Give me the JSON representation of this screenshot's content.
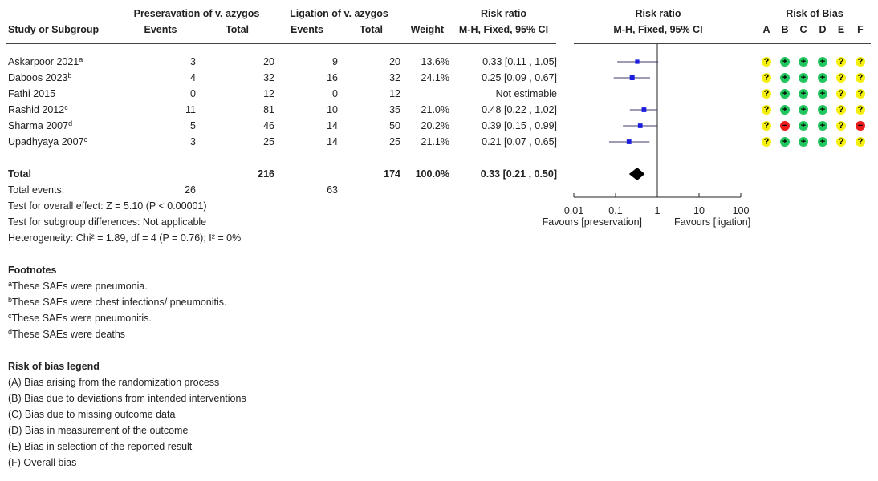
{
  "header": {
    "study_col": "Study or Subgroup",
    "group1_title": "Preseravation of v. azygos",
    "group2_title": "Ligation of v. azygos",
    "events": "Events",
    "total": "Total",
    "weight": "Weight",
    "rr_title": "Risk ratio",
    "rr_method": "M-H, Fixed, 95% CI",
    "plot_title": "Risk ratio",
    "plot_method": "M-H, Fixed, 95% CI",
    "rob_title": "Risk of Bias",
    "rob_letters": [
      "A",
      "B",
      "C",
      "D",
      "E",
      "F"
    ]
  },
  "studies": [
    {
      "name": "Askarpoor 2021",
      "sup": "a",
      "e1": "3",
      "t1": "20",
      "e2": "9",
      "t2": "20",
      "weight": "13.6%",
      "ci_text": "0.33 [0.11 , 1.05]",
      "rob": [
        "unclear",
        "low",
        "low",
        "low",
        "unclear",
        "unclear"
      ]
    },
    {
      "name": "Daboos 2023",
      "sup": "b",
      "e1": "4",
      "t1": "32",
      "e2": "16",
      "t2": "32",
      "weight": "24.1%",
      "ci_text": "0.25 [0.09 , 0.67]",
      "rob": [
        "unclear",
        "low",
        "low",
        "low",
        "unclear",
        "unclear"
      ]
    },
    {
      "name": "Fathi 2015",
      "sup": "",
      "e1": "0",
      "t1": "12",
      "e2": "0",
      "t2": "12",
      "weight": "",
      "ci_text": "Not estimable",
      "rob": [
        "unclear",
        "low",
        "low",
        "low",
        "unclear",
        "unclear"
      ]
    },
    {
      "name": "Rashid 2012",
      "sup": "c",
      "e1": "11",
      "t1": "81",
      "e2": "10",
      "t2": "35",
      "weight": "21.0%",
      "ci_text": "0.48 [0.22 , 1.02]",
      "rob": [
        "unclear",
        "low",
        "low",
        "low",
        "unclear",
        "unclear"
      ]
    },
    {
      "name": "Sharma 2007",
      "sup": "d",
      "e1": "5",
      "t1": "46",
      "e2": "14",
      "t2": "50",
      "weight": "20.2%",
      "ci_text": "0.39 [0.15 , 0.99]",
      "rob": [
        "unclear",
        "high",
        "low",
        "low",
        "unclear",
        "high"
      ]
    },
    {
      "name": "Upadhyaya 2007",
      "sup": "c",
      "e1": "3",
      "t1": "25",
      "e2": "14",
      "t2": "25",
      "weight": "21.1%",
      "ci_text": "0.21 [0.07 , 0.65]",
      "rob": [
        "unclear",
        "low",
        "low",
        "low",
        "unclear",
        "unclear"
      ]
    }
  ],
  "rob_symbols": {
    "low": "+",
    "unclear": "?",
    "high": "−"
  },
  "rob_colors": {
    "low": "#22c55e",
    "unclear": "#f5ef10",
    "high": "#ef1c1c"
  },
  "total": {
    "label": "Total",
    "t1": "216",
    "t2": "174",
    "weight": "100.0%",
    "ci_text": "0.33 [0.21 , 0.50]"
  },
  "total_events": {
    "label": "Total events:",
    "e1": "26",
    "e2": "63"
  },
  "tests": [
    "Test for overall effect: Z = 5.10 (P < 0.00001)",
    "Test for subgroup differences: Not applicable",
    "Heterogeneity: Chi² = 1.89, df = 4 (P = 0.76); I² = 0%"
  ],
  "axis": {
    "ticks": [
      "0.01",
      "0.1",
      "1",
      "10",
      "100"
    ],
    "favours_left": "Favours [preservation]",
    "favours_right": "Favours [ligation]"
  },
  "footnotes": {
    "title": "Footnotes",
    "items": [
      {
        "sup": "a",
        "text": "These SAEs were pneumonia."
      },
      {
        "sup": "b",
        "text": "These SAEs were chest infections/ pneumonitis."
      },
      {
        "sup": "c",
        "text": "These SAEs were pneumonitis."
      },
      {
        "sup": "d",
        "text": "These SAEs were deaths"
      }
    ]
  },
  "rob_legend": {
    "title": "Risk of bias legend",
    "items": [
      "(A) Bias arising from the randomization process",
      "(B) Bias due to deviations from intended interventions",
      "(C) Bias due to missing outcome data",
      "(D) Bias in measurement of the outcome",
      "(E) Bias in selection of the reported result",
      "(F) Overall bias"
    ]
  },
  "chart_data": {
    "type": "forest",
    "scale": "log",
    "xlim": [
      0.01,
      100
    ],
    "x_ticks": [
      0.01,
      0.1,
      1,
      10,
      100
    ],
    "points": [
      {
        "study": "Askarpoor 2021",
        "rr": 0.33,
        "lo": 0.11,
        "hi": 1.05,
        "weight_pct": 13.6
      },
      {
        "study": "Daboos 2023",
        "rr": 0.25,
        "lo": 0.09,
        "hi": 0.67,
        "weight_pct": 24.1
      },
      {
        "study": "Fathi 2015",
        "rr": null,
        "lo": null,
        "hi": null,
        "weight_pct": null
      },
      {
        "study": "Rashid 2012",
        "rr": 0.48,
        "lo": 0.22,
        "hi": 1.02,
        "weight_pct": 21.0
      },
      {
        "study": "Sharma 2007",
        "rr": 0.39,
        "lo": 0.15,
        "hi": 0.99,
        "weight_pct": 20.2
      },
      {
        "study": "Upadhyaya 2007",
        "rr": 0.21,
        "lo": 0.07,
        "hi": 0.65,
        "weight_pct": 21.1
      }
    ],
    "pooled": {
      "rr": 0.33,
      "lo": 0.21,
      "hi": 0.5
    },
    "marker_color": "#1d1de0",
    "pooled_color": "#000000"
  }
}
